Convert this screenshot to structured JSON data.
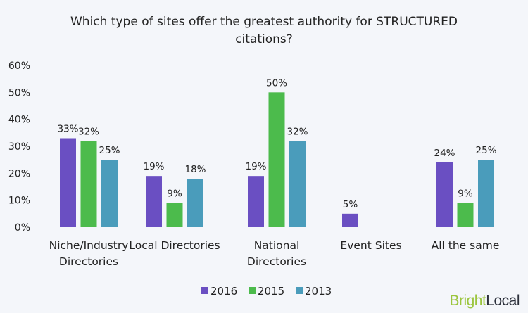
{
  "chart_data": {
    "type": "bar",
    "title": "Which type of sites offer the greatest authority for STRUCTURED citations?",
    "title_lines": [
      "Which type of sites offer the greatest authority for STRUCTURED",
      "citations?"
    ],
    "categories": [
      "Niche/Industry Directories",
      "Local Directories",
      "National Directories",
      "Event Sites",
      "All the same"
    ],
    "category_lines": [
      [
        "Niche/Industry",
        "Directories"
      ],
      [
        "Local Directories"
      ],
      [
        "National",
        "Directories"
      ],
      [
        "Event Sites"
      ],
      [
        "All the same"
      ]
    ],
    "series": [
      {
        "name": "2016",
        "color": "#6a4fc2",
        "values": [
          33,
          19,
          19,
          5,
          24
        ]
      },
      {
        "name": "2015",
        "color": "#4cbb4c",
        "values": [
          32,
          9,
          50,
          null,
          9
        ]
      },
      {
        "name": "2013",
        "color": "#4a9cbb",
        "values": [
          25,
          18,
          32,
          null,
          25
        ]
      }
    ],
    "ylim": [
      0,
      60
    ],
    "yticks": [
      "0%",
      "10%",
      "20%",
      "30%",
      "40%",
      "50%",
      "60%"
    ],
    "xlabel": "",
    "ylabel": "",
    "grid": false,
    "data_labels": true,
    "legend": "bottom-center"
  },
  "logo": {
    "text_part1": "Bright",
    "text_part2": "Local",
    "color1": "#9bc53d",
    "color2": "#2b2f3a"
  }
}
